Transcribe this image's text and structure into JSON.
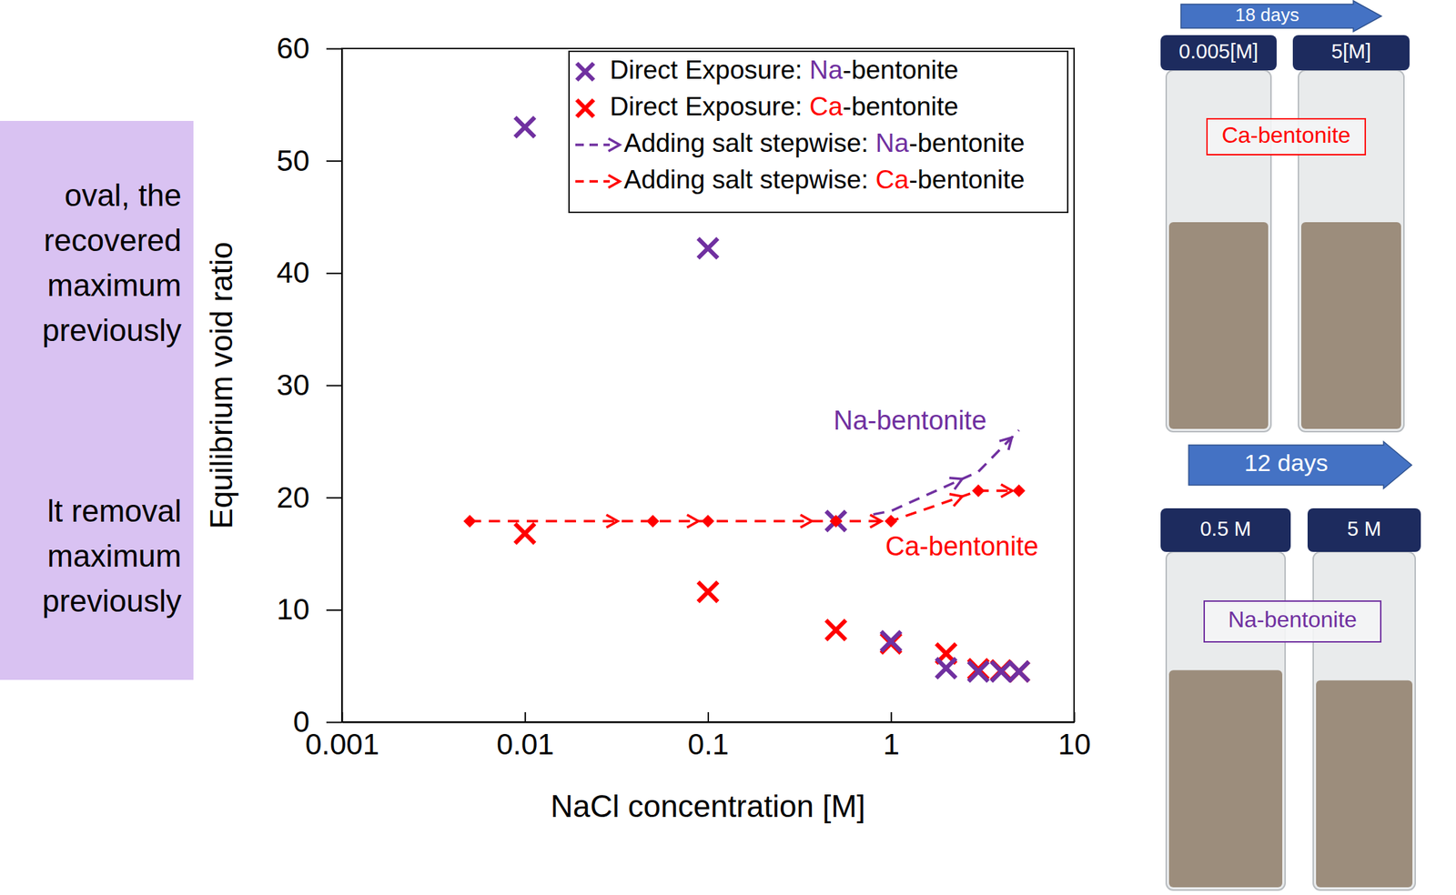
{
  "chart_data": {
    "type": "scatter",
    "x_label": "NaCl concentration [M]",
    "y_label": "Equilibrium void ratio",
    "log": "x",
    "xlim": [
      0.001,
      10
    ],
    "xticks": [
      0.001,
      0.01,
      0.1,
      1,
      10
    ],
    "ylim": [
      0,
      60
    ],
    "yticks": [
      0,
      10,
      20,
      30,
      40,
      50,
      60
    ],
    "grid": false,
    "legend": "upper right",
    "series": [
      {
        "name": "Direct Exposure: Na-bentonite",
        "color": "#7030a0",
        "type": "scatter",
        "marker": "x",
        "x": [
          0.01,
          0.1,
          0.5,
          1,
          2,
          3,
          4,
          5
        ],
        "values": [
          53,
          42.2,
          17.9,
          7.2,
          4.8,
          4.5,
          4.5,
          4.5
        ]
      },
      {
        "name": "Direct Exposure: Ca-bentonite",
        "color": "#ff0000",
        "type": "scatter",
        "marker": "x",
        "x": [
          0.01,
          0.1,
          0.5,
          1,
          2,
          3,
          4,
          5
        ],
        "values": [
          16.8,
          11.6,
          8.2,
          7.0,
          6.1,
          4.7,
          4.6,
          4.5
        ]
      },
      {
        "name": "Adding salt stepwise: Na-bentonite",
        "color": "#7030a0",
        "type": "line",
        "line_style": "dashed",
        "marker": "arrow",
        "x": [
          0.8,
          1,
          3,
          5
        ],
        "values": [
          18.5,
          18.8,
          22.3,
          26
        ]
      },
      {
        "name": "Adding salt stepwise: Ca-bentonite",
        "color": "#ff0000",
        "type": "line",
        "line_style": "dashed",
        "marker": "diamond",
        "x": [
          0.005,
          0.05,
          0.1,
          0.5,
          1,
          3,
          5
        ],
        "values": [
          17.9,
          17.9,
          17.9,
          17.9,
          17.9,
          20.6,
          20.6
        ]
      }
    ],
    "annotations": [
      {
        "text": "Na-bentonite",
        "x": 1.27,
        "y": 26.7,
        "color": "#7030a0"
      },
      {
        "text": "Ca-bentonite",
        "x": 2.44,
        "y": 15.5,
        "color": "#ff0000"
      }
    ]
  },
  "side_text": [
    [
      "oval, the",
      "recovered",
      "maximum",
      "previously"
    ],
    [
      "lt removal",
      "maximum",
      "previously"
    ]
  ],
  "photos": [
    {
      "duration": "18 days",
      "tubes": [
        "0.005[M]",
        "5[M]"
      ],
      "label": "Ca-bentonite",
      "color": "#ff0000"
    },
    {
      "duration": "12 days",
      "tubes": [
        "0.5 M",
        "5 M"
      ],
      "label": "Na-bentonite",
      "color": "#7030a0"
    }
  ]
}
